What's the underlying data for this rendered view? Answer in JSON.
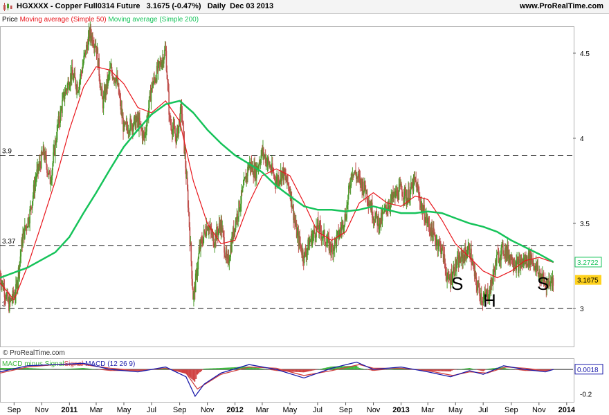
{
  "header": {
    "title": "HGXXXX - Copper Full0314 Future",
    "price": "3.1675",
    "change": "(-0.47%)",
    "period": "Daily",
    "date": "Dec 03 2013",
    "site": "www.ProRealTime.com"
  },
  "legend": {
    "price": "Price",
    "ma50": "Moving average (Simple 50)",
    "ma200": "Moving average (Simple 200)"
  },
  "watermark": "© ProRealTime.com",
  "macd_legend": {
    "a": "MACD minus Signal",
    "b": "Signal",
    "c": "MACD (12 26 9)"
  },
  "colors": {
    "up": "#4a9a2a",
    "down": "#c0504d",
    "ma50": "#e8151b",
    "ma200": "#16c35a",
    "macd": "#1a1aaa",
    "signal": "#d04040",
    "hist_pos": "#3cb83c",
    "hist_neg": "#d04040",
    "last_price_bg": "#ffd21e",
    "ma200_label": "#16c35a"
  },
  "chart_data": [
    {
      "type": "line",
      "subtype": "candlestick",
      "xlabels": [
        "Sep",
        "Nov",
        "2011",
        "Mar",
        "May",
        "Jul",
        "Sep",
        "Nov",
        "2012",
        "Mar",
        "May",
        "Jul",
        "Sep",
        "Nov",
        "2013",
        "Mar",
        "May",
        "Jul",
        "Sep",
        "Nov",
        "2014"
      ],
      "x_range": [
        "2010-08-01",
        "2014-01-15"
      ],
      "ylim": [
        2.78,
        4.65
      ],
      "yticks": [
        3,
        3.5,
        4,
        4.5
      ],
      "ytick_labels": [
        "3",
        "3.5",
        "4",
        "4.5"
      ],
      "hlines": [
        {
          "value": 3.9,
          "label": "3.9"
        },
        {
          "value": 3.37,
          "label": "3.37"
        },
        {
          "value": 3.0,
          "label": "3"
        }
      ],
      "last_values": [
        {
          "label": "3.2722",
          "value": 3.2722,
          "series": "ma200"
        },
        {
          "label": "3.1675",
          "value": 3.1675,
          "series": "price"
        }
      ],
      "annotations": [
        {
          "text": "S",
          "date": "2013-05-05",
          "value": 3.11
        },
        {
          "text": "H",
          "date": "2013-07-15",
          "value": 3.01
        },
        {
          "text": "S",
          "date": "2013-11-10",
          "value": 3.11
        }
      ],
      "series": [
        {
          "name": "Price",
          "role": "close",
          "points": [
            [
              "2010-08-01",
              3.2
            ],
            [
              "2010-08-20",
              3.02
            ],
            [
              "2010-09-05",
              3.1
            ],
            [
              "2010-09-20",
              3.42
            ],
            [
              "2010-10-05",
              3.55
            ],
            [
              "2010-10-20",
              3.78
            ],
            [
              "2010-11-05",
              3.92
            ],
            [
              "2010-11-20",
              3.75
            ],
            [
              "2010-12-05",
              4.05
            ],
            [
              "2010-12-20",
              4.25
            ],
            [
              "2011-01-05",
              4.38
            ],
            [
              "2011-01-20",
              4.3
            ],
            [
              "2011-02-05",
              4.5
            ],
            [
              "2011-02-15",
              4.62
            ],
            [
              "2011-03-01",
              4.55
            ],
            [
              "2011-03-15",
              4.2
            ],
            [
              "2011-04-01",
              4.4
            ],
            [
              "2011-04-15",
              4.35
            ],
            [
              "2011-05-01",
              4.05
            ],
            [
              "2011-05-15",
              4.08
            ],
            [
              "2011-06-01",
              4.1
            ],
            [
              "2011-06-15",
              4.0
            ],
            [
              "2011-07-01",
              4.3
            ],
            [
              "2011-07-15",
              4.4
            ],
            [
              "2011-08-01",
              4.52
            ],
            [
              "2011-08-10",
              4.1
            ],
            [
              "2011-08-25",
              4.0
            ],
            [
              "2011-09-05",
              4.18
            ],
            [
              "2011-09-20",
              3.6
            ],
            [
              "2011-10-01",
              3.05
            ],
            [
              "2011-10-15",
              3.35
            ],
            [
              "2011-11-01",
              3.5
            ],
            [
              "2011-11-15",
              3.4
            ],
            [
              "2011-12-01",
              3.5
            ],
            [
              "2011-12-15",
              3.25
            ],
            [
              "2012-01-01",
              3.5
            ],
            [
              "2012-01-15",
              3.65
            ],
            [
              "2012-02-01",
              3.85
            ],
            [
              "2012-02-15",
              3.8
            ],
            [
              "2012-03-01",
              3.92
            ],
            [
              "2012-03-15",
              3.85
            ],
            [
              "2012-04-01",
              3.75
            ],
            [
              "2012-04-15",
              3.8
            ],
            [
              "2012-05-01",
              3.7
            ],
            [
              "2012-05-15",
              3.45
            ],
            [
              "2012-06-01",
              3.3
            ],
            [
              "2012-06-15",
              3.4
            ],
            [
              "2012-07-01",
              3.48
            ],
            [
              "2012-07-15",
              3.42
            ],
            [
              "2012-08-01",
              3.35
            ],
            [
              "2012-08-15",
              3.42
            ],
            [
              "2012-09-01",
              3.55
            ],
            [
              "2012-09-15",
              3.82
            ],
            [
              "2012-10-01",
              3.75
            ],
            [
              "2012-10-15",
              3.7
            ],
            [
              "2012-11-01",
              3.55
            ],
            [
              "2012-11-15",
              3.5
            ],
            [
              "2012-12-01",
              3.6
            ],
            [
              "2012-12-15",
              3.65
            ],
            [
              "2013-01-01",
              3.7
            ],
            [
              "2013-01-15",
              3.65
            ],
            [
              "2013-02-01",
              3.75
            ],
            [
              "2013-02-15",
              3.6
            ],
            [
              "2013-03-01",
              3.5
            ],
            [
              "2013-03-15",
              3.42
            ],
            [
              "2013-04-01",
              3.35
            ],
            [
              "2013-04-15",
              3.15
            ],
            [
              "2013-05-01",
              3.25
            ],
            [
              "2013-05-15",
              3.3
            ],
            [
              "2013-06-01",
              3.35
            ],
            [
              "2013-06-15",
              3.15
            ],
            [
              "2013-07-01",
              3.05
            ],
            [
              "2013-07-15",
              3.1
            ],
            [
              "2013-08-01",
              3.3
            ],
            [
              "2013-08-15",
              3.35
            ],
            [
              "2013-09-01",
              3.3
            ],
            [
              "2013-09-15",
              3.25
            ],
            [
              "2013-10-01",
              3.28
            ],
            [
              "2013-10-15",
              3.3
            ],
            [
              "2013-11-01",
              3.2
            ],
            [
              "2013-11-15",
              3.15
            ],
            [
              "2013-12-03",
              3.1675
            ]
          ]
        },
        {
          "name": "Moving average (Simple 50)",
          "role": "ma50",
          "points": [
            [
              "2010-08-01",
              3.15
            ],
            [
              "2010-09-01",
              3.05
            ],
            [
              "2010-10-01",
              3.25
            ],
            [
              "2010-11-01",
              3.5
            ],
            [
              "2010-12-01",
              3.75
            ],
            [
              "2011-01-01",
              4.05
            ],
            [
              "2011-02-01",
              4.3
            ],
            [
              "2011-03-01",
              4.42
            ],
            [
              "2011-04-01",
              4.4
            ],
            [
              "2011-05-01",
              4.32
            ],
            [
              "2011-06-01",
              4.18
            ],
            [
              "2011-07-01",
              4.15
            ],
            [
              "2011-08-01",
              4.22
            ],
            [
              "2011-09-01",
              4.1
            ],
            [
              "2011-10-01",
              3.75
            ],
            [
              "2011-11-01",
              3.5
            ],
            [
              "2011-12-01",
              3.38
            ],
            [
              "2012-01-01",
              3.4
            ],
            [
              "2012-02-01",
              3.62
            ],
            [
              "2012-03-01",
              3.78
            ],
            [
              "2012-04-01",
              3.82
            ],
            [
              "2012-05-01",
              3.78
            ],
            [
              "2012-06-01",
              3.62
            ],
            [
              "2012-07-01",
              3.45
            ],
            [
              "2012-08-01",
              3.4
            ],
            [
              "2012-09-01",
              3.45
            ],
            [
              "2012-10-01",
              3.62
            ],
            [
              "2012-11-01",
              3.68
            ],
            [
              "2012-12-01",
              3.62
            ],
            [
              "2013-01-01",
              3.6
            ],
            [
              "2013-02-01",
              3.66
            ],
            [
              "2013-03-01",
              3.64
            ],
            [
              "2013-04-01",
              3.52
            ],
            [
              "2013-05-01",
              3.38
            ],
            [
              "2013-06-01",
              3.3
            ],
            [
              "2013-07-01",
              3.22
            ],
            [
              "2013-08-01",
              3.18
            ],
            [
              "2013-09-01",
              3.22
            ],
            [
              "2013-10-01",
              3.28
            ],
            [
              "2013-11-01",
              3.3
            ],
            [
              "2013-12-03",
              3.27
            ]
          ]
        },
        {
          "name": "Moving average (Simple 200)",
          "role": "ma200",
          "points": [
            [
              "2010-08-01",
              3.18
            ],
            [
              "2010-10-01",
              3.24
            ],
            [
              "2010-12-01",
              3.33
            ],
            [
              "2011-01-01",
              3.42
            ],
            [
              "2011-02-01",
              3.56
            ],
            [
              "2011-03-01",
              3.68
            ],
            [
              "2011-04-01",
              3.82
            ],
            [
              "2011-05-01",
              3.95
            ],
            [
              "2011-06-01",
              4.05
            ],
            [
              "2011-07-01",
              4.14
            ],
            [
              "2011-08-01",
              4.2
            ],
            [
              "2011-09-01",
              4.22
            ],
            [
              "2011-10-01",
              4.15
            ],
            [
              "2011-11-01",
              4.05
            ],
            [
              "2011-12-01",
              3.97
            ],
            [
              "2012-01-01",
              3.9
            ],
            [
              "2012-02-01",
              3.85
            ],
            [
              "2012-03-01",
              3.8
            ],
            [
              "2012-04-01",
              3.72
            ],
            [
              "2012-05-01",
              3.66
            ],
            [
              "2012-06-01",
              3.6
            ],
            [
              "2012-07-01",
              3.58
            ],
            [
              "2012-08-01",
              3.58
            ],
            [
              "2012-09-01",
              3.57
            ],
            [
              "2012-10-01",
              3.58
            ],
            [
              "2012-11-01",
              3.6
            ],
            [
              "2012-12-01",
              3.58
            ],
            [
              "2013-01-01",
              3.56
            ],
            [
              "2013-02-01",
              3.56
            ],
            [
              "2013-03-01",
              3.57
            ],
            [
              "2013-04-01",
              3.56
            ],
            [
              "2013-05-01",
              3.53
            ],
            [
              "2013-06-01",
              3.5
            ],
            [
              "2013-07-01",
              3.48
            ],
            [
              "2013-08-01",
              3.45
            ],
            [
              "2013-09-01",
              3.4
            ],
            [
              "2013-10-01",
              3.36
            ],
            [
              "2013-11-01",
              3.32
            ],
            [
              "2013-12-03",
              3.2722
            ]
          ]
        }
      ]
    },
    {
      "type": "line",
      "subtype": "macd",
      "title": "MACD (12 26 9)",
      "ylim": [
        -0.26,
        0.08
      ],
      "yticks": [
        -0.2
      ],
      "ytick_labels": [
        "-0.2"
      ],
      "last_values": [
        {
          "label": "0.0018",
          "value": 0.0018
        }
      ],
      "series": [
        {
          "name": "MACD",
          "role": "macd",
          "points": [
            [
              "2010-08-01",
              -0.02
            ],
            [
              "2010-10-01",
              0.03
            ],
            [
              "2010-12-01",
              0.04
            ],
            [
              "2011-02-01",
              0.05
            ],
            [
              "2011-04-01",
              0.0
            ],
            [
              "2011-06-01",
              -0.02
            ],
            [
              "2011-08-01",
              0.02
            ],
            [
              "2011-09-15",
              -0.06
            ],
            [
              "2011-10-05",
              -0.22
            ],
            [
              "2011-10-25",
              -0.12
            ],
            [
              "2011-12-01",
              -0.03
            ],
            [
              "2012-02-01",
              0.04
            ],
            [
              "2012-04-01",
              0.0
            ],
            [
              "2012-06-01",
              -0.07
            ],
            [
              "2012-08-01",
              0.01
            ],
            [
              "2012-09-25",
              0.06
            ],
            [
              "2012-11-01",
              0.0
            ],
            [
              "2013-01-01",
              0.02
            ],
            [
              "2013-03-01",
              -0.02
            ],
            [
              "2013-04-20",
              -0.06
            ],
            [
              "2013-06-01",
              -0.01
            ],
            [
              "2013-07-01",
              -0.04
            ],
            [
              "2013-08-15",
              0.03
            ],
            [
              "2013-10-01",
              0.0
            ],
            [
              "2013-11-15",
              -0.02
            ],
            [
              "2013-12-03",
              0.0
            ]
          ]
        },
        {
          "name": "Signal",
          "role": "signal",
          "points": [
            [
              "2010-08-01",
              -0.03
            ],
            [
              "2010-10-01",
              0.02
            ],
            [
              "2010-12-01",
              0.04
            ],
            [
              "2011-02-01",
              0.04
            ],
            [
              "2011-04-01",
              0.01
            ],
            [
              "2011-06-01",
              -0.01
            ],
            [
              "2011-08-01",
              0.01
            ],
            [
              "2011-09-15",
              -0.03
            ],
            [
              "2011-10-10",
              -0.16
            ],
            [
              "2011-11-05",
              -0.1
            ],
            [
              "2011-12-01",
              -0.04
            ],
            [
              "2012-02-01",
              0.02
            ],
            [
              "2012-04-01",
              0.01
            ],
            [
              "2012-06-01",
              -0.05
            ],
            [
              "2012-08-01",
              -0.01
            ],
            [
              "2012-10-01",
              0.04
            ],
            [
              "2012-11-01",
              0.01
            ],
            [
              "2013-01-01",
              0.01
            ],
            [
              "2013-03-01",
              -0.01
            ],
            [
              "2013-04-25",
              -0.05
            ],
            [
              "2013-06-01",
              -0.02
            ],
            [
              "2013-07-10",
              -0.03
            ],
            [
              "2013-08-20",
              0.02
            ],
            [
              "2013-10-01",
              0.01
            ],
            [
              "2013-11-15",
              -0.01
            ],
            [
              "2013-12-03",
              0.0
            ]
          ]
        }
      ]
    }
  ]
}
